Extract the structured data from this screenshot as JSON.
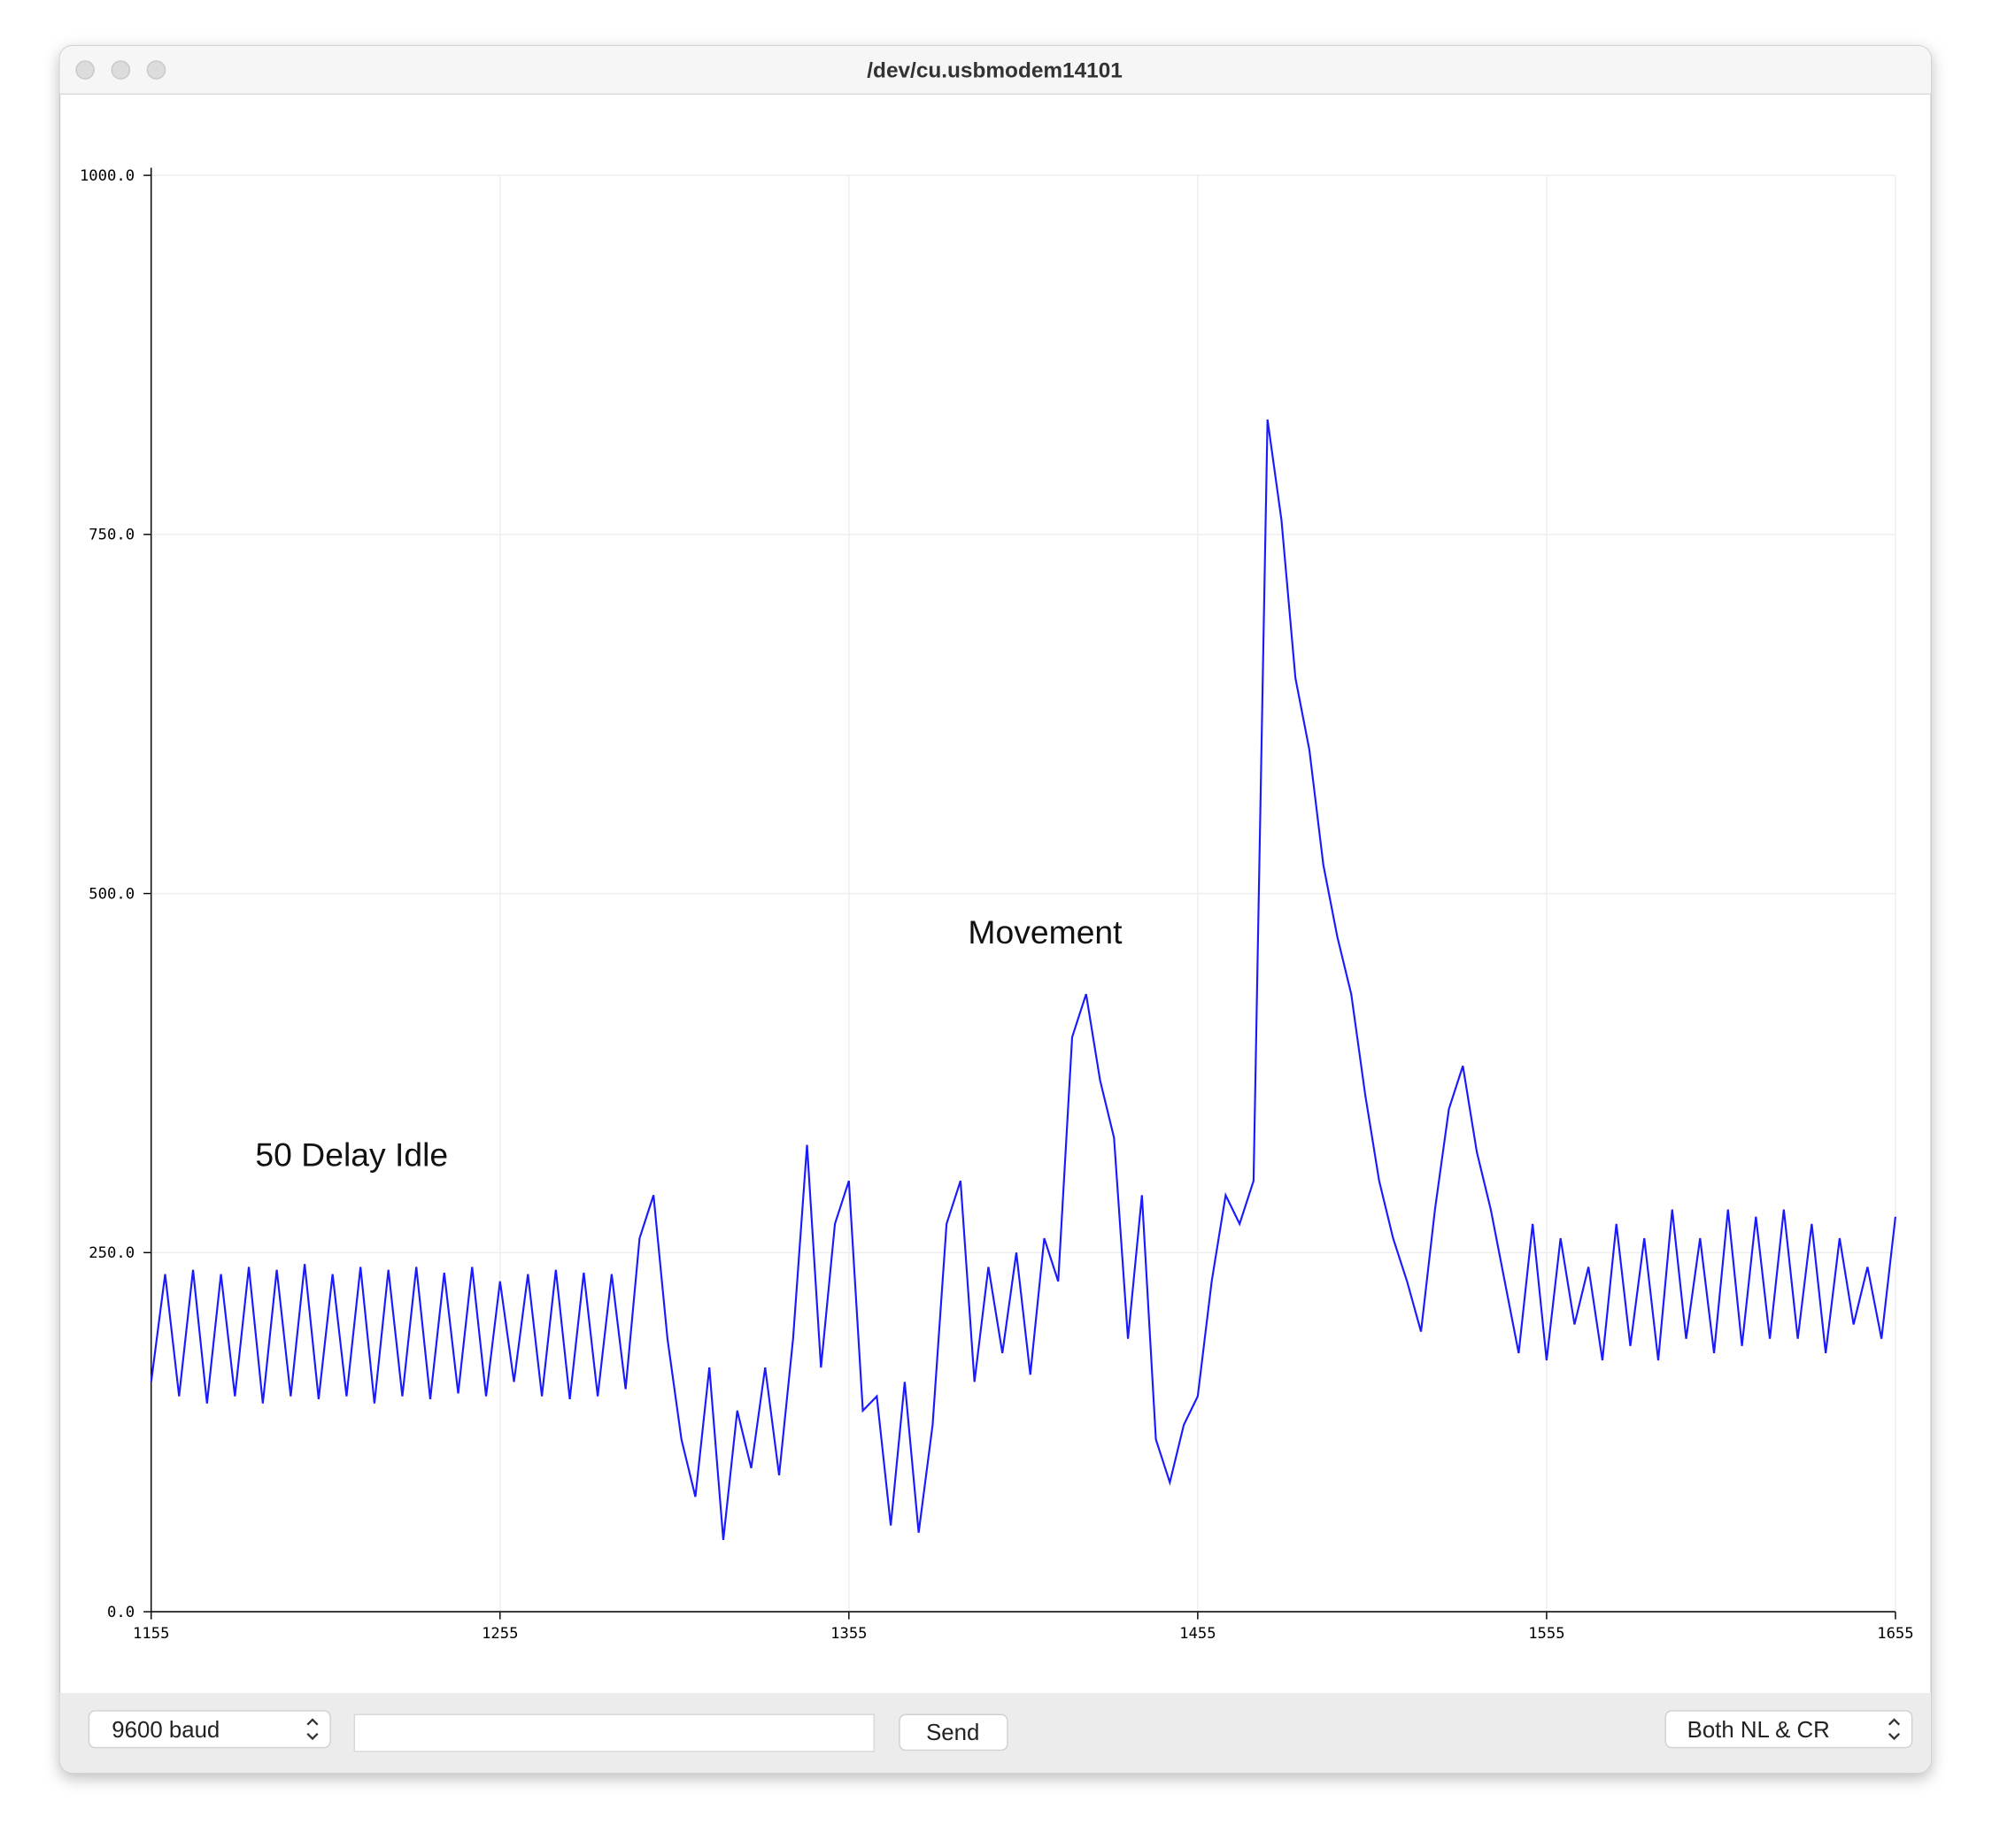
{
  "window": {
    "title": "/dev/cu.usbmodem14101"
  },
  "controls": {
    "baud": "9600 baud",
    "send": "Send",
    "line_ending": "Both NL & CR"
  },
  "chart_data": {
    "type": "line",
    "annotations": [
      "50 Delay Idle",
      "Movement"
    ],
    "xlim": [
      1155,
      1655
    ],
    "xticks": [
      1155,
      1255,
      1355,
      1455,
      1555,
      1655
    ],
    "ylim": [
      0,
      1000
    ],
    "yticks": [
      {
        "value": 0,
        "label": "0.0"
      },
      {
        "value": 250,
        "label": "250.0"
      },
      {
        "value": 500,
        "label": "500.0"
      },
      {
        "value": 750,
        "label": "750.0"
      },
      {
        "value": 1000,
        "label": "1000.0"
      }
    ],
    "grid": true,
    "x": [
      1155,
      1159,
      1163,
      1167,
      1171,
      1175,
      1179,
      1183,
      1187,
      1191,
      1195,
      1199,
      1203,
      1207,
      1211,
      1215,
      1219,
      1223,
      1227,
      1231,
      1235,
      1239,
      1243,
      1247,
      1251,
      1255,
      1259,
      1263,
      1267,
      1271,
      1275,
      1279,
      1283,
      1287,
      1291,
      1295,
      1299,
      1303,
      1307,
      1311,
      1315,
      1319,
      1323,
      1327,
      1331,
      1335,
      1339,
      1343,
      1347,
      1351,
      1355,
      1359,
      1363,
      1367,
      1371,
      1375,
      1379,
      1383,
      1387,
      1391,
      1395,
      1399,
      1403,
      1407,
      1411,
      1415,
      1419,
      1423,
      1427,
      1431,
      1435,
      1439,
      1443,
      1447,
      1451,
      1455,
      1459,
      1463,
      1467,
      1471,
      1475,
      1479,
      1483,
      1487,
      1491,
      1495,
      1499,
      1503,
      1507,
      1511,
      1515,
      1519,
      1523,
      1527,
      1531,
      1535,
      1539,
      1543,
      1547,
      1551,
      1555,
      1559,
      1563,
      1567,
      1571,
      1575,
      1579,
      1583,
      1587,
      1591,
      1595,
      1599,
      1603,
      1607,
      1611,
      1615,
      1619,
      1623,
      1627,
      1631,
      1635,
      1639,
      1643,
      1647,
      1651,
      1655
    ],
    "series": [
      {
        "color": "#1a1aff",
        "values": [
          160,
          235,
          150,
          238,
          145,
          235,
          150,
          240,
          145,
          238,
          150,
          242,
          148,
          235,
          150,
          240,
          145,
          238,
          150,
          240,
          148,
          236,
          152,
          240,
          150,
          230,
          160,
          235,
          150,
          238,
          148,
          236,
          150,
          235,
          155,
          260,
          290,
          190,
          120,
          80,
          170,
          50,
          140,
          100,
          170,
          95,
          190,
          325,
          170,
          270,
          300,
          140,
          150,
          60,
          160,
          55,
          130,
          270,
          300,
          160,
          240,
          180,
          250,
          165,
          260,
          230,
          400,
          430,
          370,
          330,
          190,
          290,
          120,
          90,
          130,
          150,
          230,
          290,
          270,
          300,
          830,
          760,
          650,
          600,
          520,
          470,
          430,
          360,
          300,
          260,
          230,
          195,
          280,
          350,
          380,
          320,
          280,
          230,
          180,
          270,
          175,
          260,
          200,
          240,
          175,
          270,
          185,
          260,
          175,
          280,
          190,
          260,
          180,
          280,
          185,
          275,
          190,
          280,
          190,
          270,
          180,
          260,
          200,
          240,
          190,
          275
        ]
      }
    ]
  }
}
